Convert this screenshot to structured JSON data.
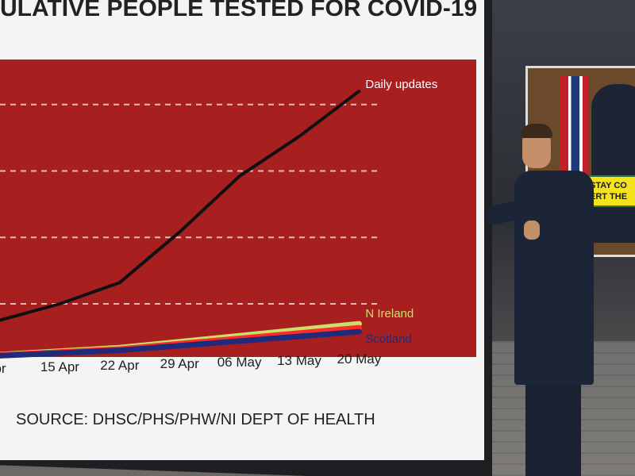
{
  "chart_data": {
    "type": "line",
    "title": "ULATIVE PEOPLE TESTED FOR COVID-19",
    "source": "SOURCE: DHSC/PHS/PHW/NI DEPT OF HEALTH",
    "x_ticks": [
      "pr",
      "15 Apr",
      "22 Apr",
      "29 Apr",
      "06 May",
      "13 May",
      "20 May"
    ],
    "x_tick_positions": [
      0,
      1,
      2,
      3,
      4,
      5,
      6
    ],
    "xlim": [
      0,
      6.3
    ],
    "ylim": [
      0,
      100
    ],
    "grid": true,
    "series": [
      {
        "name": "Daily updates",
        "color": "#111111",
        "points": [
          [
            -0.3,
            12
          ],
          [
            1,
            20
          ],
          [
            2,
            28
          ],
          [
            3,
            47
          ],
          [
            4,
            68
          ],
          [
            5,
            83
          ],
          [
            6,
            100
          ]
        ]
      },
      {
        "name": "N Ireland",
        "color": "#c8e06a",
        "points": [
          [
            -0.3,
            0.5
          ],
          [
            2,
            3.5
          ],
          [
            4,
            8
          ],
          [
            6,
            12.5
          ]
        ]
      },
      {
        "name": "",
        "color": "#ff2a2a",
        "points": [
          [
            -0.3,
            0.4
          ],
          [
            2,
            3
          ],
          [
            4,
            7
          ],
          [
            6,
            11
          ]
        ]
      },
      {
        "name": "Scotland",
        "color": "#1f2a7a",
        "points": [
          [
            -0.3,
            0.2
          ],
          [
            2,
            2.5
          ],
          [
            4,
            6
          ],
          [
            6,
            9.5
          ]
        ]
      }
    ]
  },
  "scene": {
    "monitor_banner_line1": "STAY CO",
    "monitor_banner_line2": "ERT THE"
  }
}
